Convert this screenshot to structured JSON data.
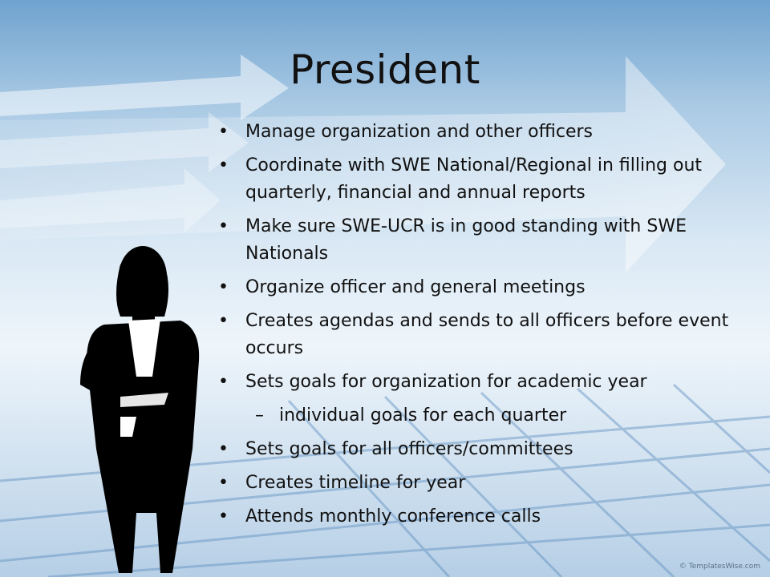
{
  "slide": {
    "title": "President",
    "bullets": [
      {
        "level": 1,
        "text": "Manage organization and other officers"
      },
      {
        "level": 1,
        "text": "Coordinate with SWE National/Regional in filling out quarterly, financial and annual reports"
      },
      {
        "level": 1,
        "text": "Make sure SWE-UCR is in good standing with SWE Nationals"
      },
      {
        "level": 1,
        "text": "Organize officer and general meetings"
      },
      {
        "level": 1,
        "text": "Creates agendas and sends to all officers before event occurs"
      },
      {
        "level": 1,
        "text": "Sets goals for organization for academic year"
      },
      {
        "level": 2,
        "text": "individual goals for each quarter"
      },
      {
        "level": 1,
        "text": "Sets goals for all officers/committees"
      },
      {
        "level": 1,
        "text": "Creates timeline for year"
      },
      {
        "level": 1,
        "text": "Attends monthly conference calls"
      }
    ],
    "bullet_marks": {
      "level1": "•",
      "level2": "–"
    },
    "copyright": "© TemplatesWise.com"
  },
  "colors": {
    "text": "#111111",
    "sky_top": "#6fa3cf",
    "sky_mid": "#eef5fb",
    "silhouette": "#000000"
  },
  "icons": {
    "background": "arrows-and-grid-graphic",
    "figure": "businesswoman-silhouette"
  }
}
